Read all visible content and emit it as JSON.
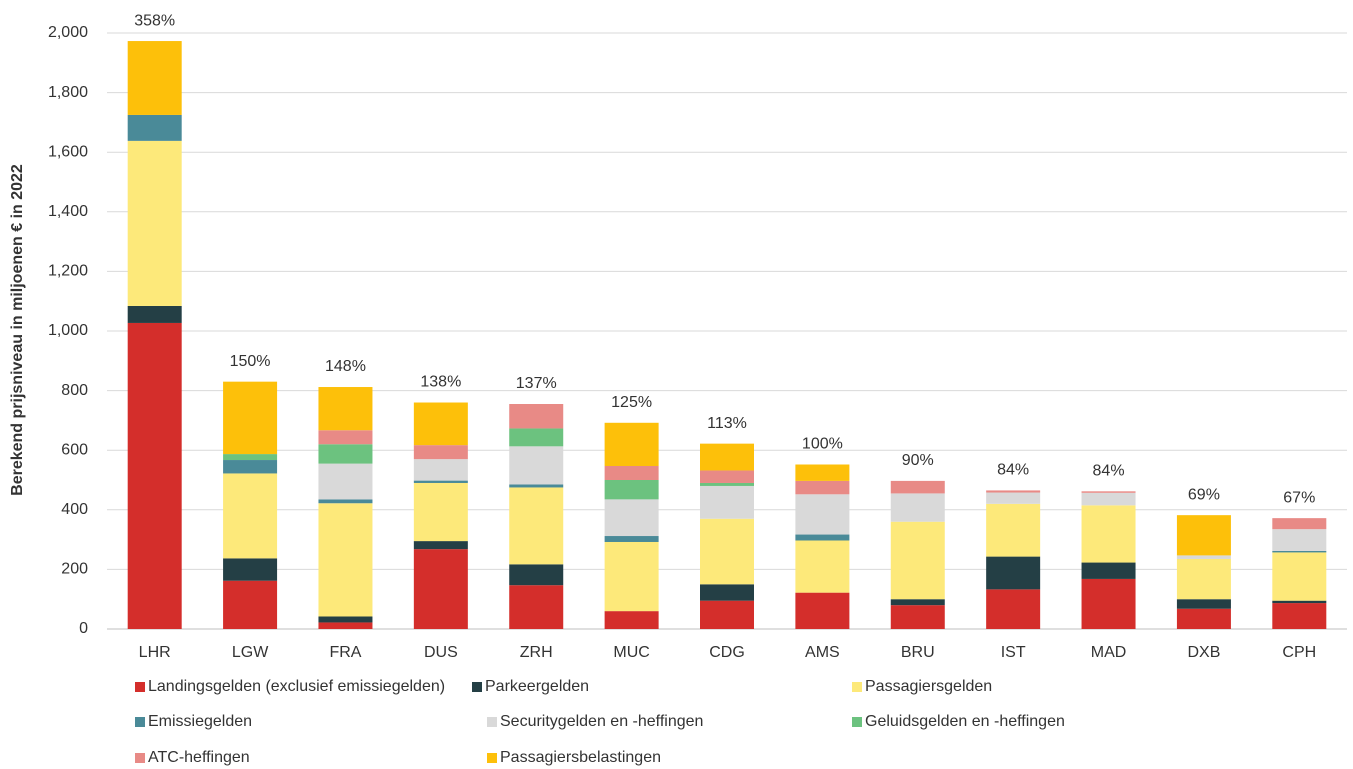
{
  "chart_data": {
    "type": "stacked_bar",
    "y_label": "Berekend prijsniveau in miljoenen € in 2022",
    "categories": [
      "LHR",
      "LGW",
      "FRA",
      "DUS",
      "ZRH",
      "MUC",
      "CDG",
      "AMS",
      "BRU",
      "IST",
      "MAD",
      "DXB",
      "CPH"
    ],
    "series": [
      {
        "name": "Landingsgelden (exclusief emissiegelden)",
        "color": "#d42e2b",
        "values": [
          1027,
          162,
          22,
          268,
          147,
          60,
          95,
          122,
          80,
          133,
          168,
          68,
          87
        ]
      },
      {
        "name": "Parkeergelden",
        "color": "#243f45",
        "values": [
          57,
          75,
          20,
          27,
          70,
          0,
          55,
          0,
          20,
          110,
          55,
          32,
          8
        ]
      },
      {
        "name": "Passagiersgelden",
        "color": "#fde97a",
        "values": [
          554,
          285,
          380,
          195,
          258,
          232,
          220,
          175,
          260,
          177,
          192,
          135,
          162
        ]
      },
      {
        "name": "Emissiegelden",
        "color": "#4a8a98",
        "values": [
          87,
          45,
          13,
          8,
          10,
          20,
          0,
          20,
          0,
          0,
          0,
          0,
          5
        ]
      },
      {
        "name": "Securitygelden en -heffingen",
        "color": "#d9d9d9",
        "values": [
          0,
          0,
          120,
          72,
          128,
          123,
          110,
          135,
          95,
          38,
          42,
          12,
          73
        ]
      },
      {
        "name": "Geluidsgelden en -heffingen",
        "color": "#6cc27f",
        "values": [
          0,
          20,
          65,
          0,
          60,
          65,
          10,
          0,
          0,
          0,
          0,
          0,
          0
        ]
      },
      {
        "name": "ATC-heffingen",
        "color": "#e88a86",
        "values": [
          0,
          0,
          47,
          47,
          82,
          47,
          42,
          45,
          42,
          7,
          5,
          0,
          37
        ]
      },
      {
        "name": "Passagiersbelastingen",
        "color": "#fdc00a",
        "values": [
          248,
          243,
          145,
          143,
          0,
          145,
          90,
          55,
          0,
          0,
          0,
          135,
          0
        ]
      }
    ],
    "annotations": [
      "358%",
      "150%",
      "148%",
      "138%",
      "137%",
      "125%",
      "113%",
      "100%",
      "90%",
      "84%",
      "84%",
      "69%",
      "67%"
    ],
    "ylim": [
      0,
      2000
    ],
    "yticks": [
      0,
      200,
      400,
      600,
      800,
      {
        "value": 1000,
        "label": "1,000"
      },
      {
        "value": 1200,
        "label": "1,200"
      },
      {
        "value": 1400,
        "label": "1,400"
      },
      {
        "value": 1600,
        "label": "1,600"
      },
      {
        "value": 1800,
        "label": "1,800"
      },
      {
        "value": 2000,
        "label": "2,000"
      }
    ],
    "grid": true
  }
}
